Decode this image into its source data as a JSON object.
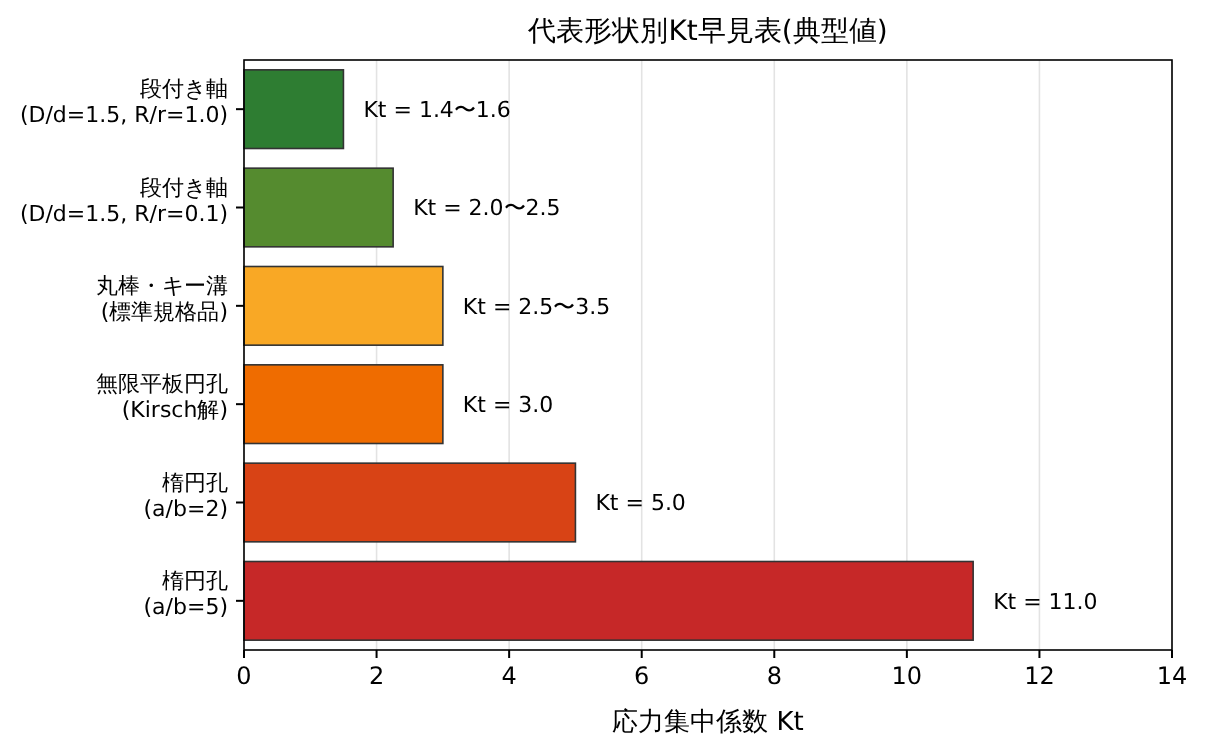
{
  "chart_data": {
    "type": "bar",
    "orientation": "horizontal",
    "title": "代表形状別Kt早見表(典型値)",
    "xlabel": "応力集中係数 Kt",
    "categories": [
      "段付き軸\n(D/d=1.5, R/r=1.0)",
      "段付き軸\n(D/d=1.5, R/r=0.1)",
      "丸棒・キー溝\n(標準規格品)",
      "無限平板円孔\n(Kirsch解)",
      "楕円孔\n(a/b=2)",
      "楕円孔\n(a/b=5)"
    ],
    "values": [
      1.5,
      2.25,
      3.0,
      3.0,
      5.0,
      11.0
    ],
    "colors": [
      "#2e7d32",
      "#558b2f",
      "#f9a825",
      "#ef6c00",
      "#d84315",
      "#c62828"
    ],
    "value_labels": [
      "Kt = 1.4〜1.6",
      "Kt = 2.0〜2.5",
      "Kt = 2.5〜3.5",
      "Kt = 3.0",
      "Kt = 5.0",
      "Kt = 11.0"
    ],
    "xlim": [
      0,
      14
    ],
    "xticks": [
      0,
      2,
      4,
      6,
      8,
      10,
      12,
      14
    ],
    "grid": "x"
  }
}
